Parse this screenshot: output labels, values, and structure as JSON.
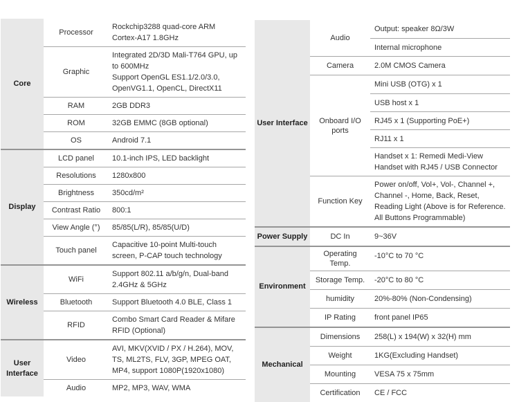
{
  "colors": {
    "category_bg": "#e8e8e8",
    "group_line": "#949494",
    "row_line": "#a6a6a6",
    "text": "#333333"
  },
  "left_table": {
    "groups": [
      {
        "category": "Core",
        "rows": [
          {
            "label": "Processor",
            "cells": [
              "Rockchip3288 quad-core ARM Cortex-A17 1.8GHz"
            ]
          },
          {
            "label": "Graphic",
            "cells": [
              "Integrated 2D/3D Mali-T764 GPU, up to 600MHz\nSupport OpenGL ES1.1/2.0/3.0, OpenVG1.1, OpenCL, DirectX11"
            ]
          },
          {
            "label": "RAM",
            "cells": [
              "2GB DDR3"
            ]
          },
          {
            "label": "ROM",
            "cells": [
              "32GB EMMC (8GB optional)"
            ]
          },
          {
            "label": "OS",
            "cells": [
              "Android 7.1"
            ]
          }
        ]
      },
      {
        "category": "Display",
        "rows": [
          {
            "label": "LCD panel",
            "cells": [
              "10.1-inch IPS, LED backlight"
            ]
          },
          {
            "label": "Resolutions",
            "cells": [
              "1280x800"
            ]
          },
          {
            "label": "Brightness",
            "cells": [
              "350cd/m²"
            ]
          },
          {
            "label": "Contrast Ratio",
            "cells": [
              "800:1"
            ]
          },
          {
            "label": "View Angle (°)",
            "cells": [
              "85/85(L/R), 85/85(U/D)"
            ]
          },
          {
            "label": "Touch panel",
            "cells": [
              "Capacitive 10-point Multi-touch screen, P-CAP touch technology"
            ]
          }
        ]
      },
      {
        "category": "Wireless",
        "rows": [
          {
            "label": "WiFi",
            "cells": [
              "Support 802.11 a/b/g/n, Dual-band 2.4GHz & 5GHz"
            ]
          },
          {
            "label": "Bluetooth",
            "cells": [
              "Support Bluetooth 4.0 BLE, Class 1"
            ]
          },
          {
            "label": "RFID",
            "cells": [
              "Combo Smart Card Reader & Mifare RFID (Optional)"
            ]
          }
        ]
      },
      {
        "category": "User Interface",
        "rows": [
          {
            "label": "Video",
            "cells": [
              "AVI, MKV(XVID / PX / H.264), MOV, TS, ML2TS, FLV, 3GP, MPEG OAT, MP4, support 1080P(1920x1080)"
            ]
          },
          {
            "label": "Audio",
            "cells": [
              "MP2, MP3, WAV, WMA"
            ]
          }
        ]
      }
    ]
  },
  "right_table": {
    "groups": [
      {
        "category": "User Interface",
        "rows": [
          {
            "label": "Audio",
            "cells": [
              "Output: speaker 8Ω/3W",
              "Internal microphone"
            ]
          },
          {
            "label": "Camera",
            "cells": [
              "2.0M CMOS Camera"
            ]
          },
          {
            "label": "Onboard I/O ports",
            "cells": [
              "Mini USB (OTG) x 1",
              "USB host x 1",
              "RJ45 x 1 (Supporting PoE+)",
              "RJ11 x 1",
              "Handset x 1: Remedi Medi-View Handset with RJ45 / USB Connector"
            ]
          },
          {
            "label": "Function Key",
            "cells": [
              "Power on/off, Vol+, Vol-, Channel +, Channel -, Home, Back, Reset, Reading Light (Above is for Reference. All Buttons Programmable)"
            ]
          }
        ]
      },
      {
        "category": "Power Supply",
        "rows": [
          {
            "label": "DC In",
            "cells": [
              "9~36V"
            ]
          }
        ]
      },
      {
        "category": "Environment",
        "rows": [
          {
            "label": "Operating Temp.",
            "cells": [
              "-10°C to 70 °C"
            ]
          },
          {
            "label": "Storage Temp.",
            "cells": [
              "-20°C to 80 °C"
            ]
          },
          {
            "label": "humidity",
            "cells": [
              "20%-80% (Non-Condensing)"
            ]
          },
          {
            "label": "IP Rating",
            "cells": [
              "front panel IP65"
            ]
          }
        ]
      },
      {
        "category": "Mechanical",
        "rows": [
          {
            "label": "Dimensions",
            "cells": [
              "258(L) x 194(W) x 32(H) mm"
            ]
          },
          {
            "label": "Weight",
            "cells": [
              "1KG(Excluding Handset)"
            ]
          },
          {
            "label": "Mounting",
            "cells": [
              "VESA 75 x 75mm"
            ]
          },
          {
            "label": "Certification",
            "cells": [
              "CE / FCC"
            ]
          }
        ]
      }
    ]
  }
}
